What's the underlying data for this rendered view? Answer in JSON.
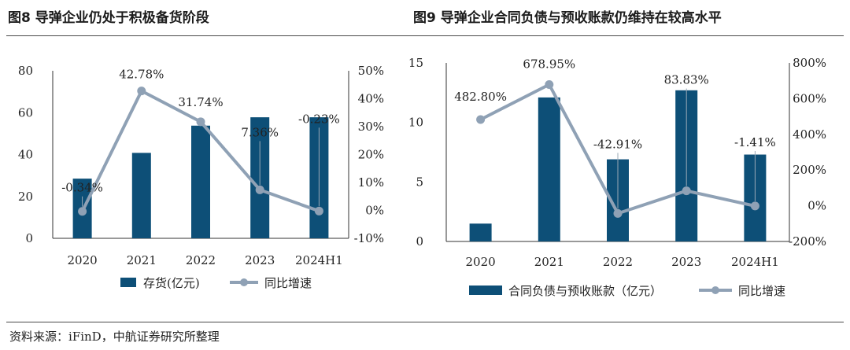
{
  "colors": {
    "bar": "#0d4f77",
    "line": "#8fa1b5",
    "axis": "#333333"
  },
  "legend_labels": {
    "left_bar": "存货(亿元)",
    "left_line": "同比增速",
    "right_bar": "合同负债与预收账款（亿元）",
    "right_line": "同比增速"
  },
  "source": "资料来源：iFinD，中航证券研究所整理",
  "chart_data": [
    {
      "type": "bar",
      "title": "图8  导弹企业仍处于积极备货阶段",
      "categories": [
        "2020",
        "2021",
        "2022",
        "2023",
        "2024H1"
      ],
      "series": [
        {
          "name": "存货(亿元)",
          "type": "bar",
          "axis": "left",
          "values": [
            28.5,
            40.8,
            53.8,
            57.8,
            57.8
          ]
        },
        {
          "name": "同比增速",
          "type": "line",
          "axis": "right",
          "values": [
            -0.34,
            42.78,
            31.74,
            7.36,
            -0.23
          ]
        }
      ],
      "data_labels": [
        "-0.34%",
        "42.78%",
        "31.74%",
        "7.36%",
        "-0.23%"
      ],
      "ylim_left": [
        0,
        80
      ],
      "yticks_left": [
        "0",
        "20",
        "40",
        "60",
        "80"
      ],
      "ylim_right": [
        -10,
        50
      ],
      "yticks_right": [
        "-10%",
        "0%",
        "10%",
        "20%",
        "30%",
        "40%",
        "50%"
      ]
    },
    {
      "type": "bar",
      "title": "图9  导弹企业合同负债与预收账款仍维持在较高水平",
      "categories": [
        "2020",
        "2021",
        "2022",
        "2023",
        "2024H1"
      ],
      "series": [
        {
          "name": "合同负债与预收账款（亿元）",
          "type": "bar",
          "axis": "left",
          "values": [
            1.5,
            12.1,
            6.9,
            12.7,
            7.3
          ]
        },
        {
          "name": "同比增速",
          "type": "line",
          "axis": "right",
          "values": [
            482.8,
            678.95,
            -42.91,
            83.83,
            -1.41
          ]
        }
      ],
      "data_labels": [
        "482.80%",
        "678.95%",
        "-42.91%",
        "83.83%",
        "-1.41%"
      ],
      "ylim_left": [
        0,
        15
      ],
      "yticks_left": [
        "0",
        "5",
        "10",
        "15"
      ],
      "ylim_right": [
        -200,
        800
      ],
      "yticks_right": [
        "-200%",
        "0%",
        "200%",
        "400%",
        "600%",
        "800%"
      ]
    }
  ]
}
